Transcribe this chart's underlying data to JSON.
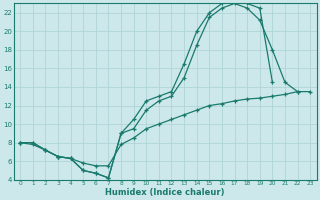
{
  "xlabel": "Humidex (Indice chaleur)",
  "bg_color": "#cce8ea",
  "grid_color": "#b0d4d8",
  "line_color": "#1a7a6e",
  "xlim": [
    -0.5,
    23.5
  ],
  "ylim": [
    4,
    23
  ],
  "yticks": [
    4,
    6,
    8,
    10,
    12,
    14,
    16,
    18,
    20,
    22
  ],
  "xticks": [
    0,
    1,
    2,
    3,
    4,
    5,
    6,
    7,
    8,
    9,
    10,
    11,
    12,
    13,
    14,
    15,
    16,
    17,
    18,
    19,
    20,
    21,
    22,
    23
  ],
  "line1_x": [
    0,
    1,
    2,
    3,
    4,
    5,
    6,
    7,
    8,
    9,
    10,
    11,
    12,
    13,
    14,
    15,
    16,
    17,
    18,
    19,
    20
  ],
  "line1_y": [
    8,
    8,
    7.2,
    6.5,
    6.3,
    5.0,
    4.7,
    4.2,
    9.0,
    10.5,
    12.5,
    13.0,
    13.5,
    16.5,
    20.0,
    22.0,
    23.0,
    23.5,
    23.0,
    22.5,
    14.5
  ],
  "line2_x": [
    0,
    1,
    2,
    3,
    4,
    5,
    6,
    7,
    8,
    9,
    10,
    11,
    12,
    13,
    14,
    15,
    16,
    17,
    18,
    19,
    20,
    21,
    22
  ],
  "line2_y": [
    8,
    8,
    7.2,
    6.5,
    6.3,
    5.0,
    4.7,
    4.2,
    9.0,
    9.5,
    11.5,
    12.5,
    13.0,
    15.0,
    18.5,
    21.5,
    22.5,
    23.0,
    22.5,
    21.2,
    18.0,
    14.5,
    13.5
  ],
  "line3_x": [
    0,
    1,
    2,
    3,
    4,
    5,
    6,
    7,
    8,
    9,
    10,
    11,
    12,
    13,
    14,
    15,
    16,
    17,
    18,
    19,
    20,
    21,
    22,
    23
  ],
  "line3_y": [
    8,
    7.8,
    7.2,
    6.5,
    6.3,
    5.8,
    5.5,
    5.5,
    7.8,
    8.5,
    9.5,
    10.0,
    10.5,
    11.0,
    11.5,
    12.0,
    12.2,
    12.5,
    12.7,
    12.8,
    13.0,
    13.2,
    13.5,
    13.5
  ]
}
